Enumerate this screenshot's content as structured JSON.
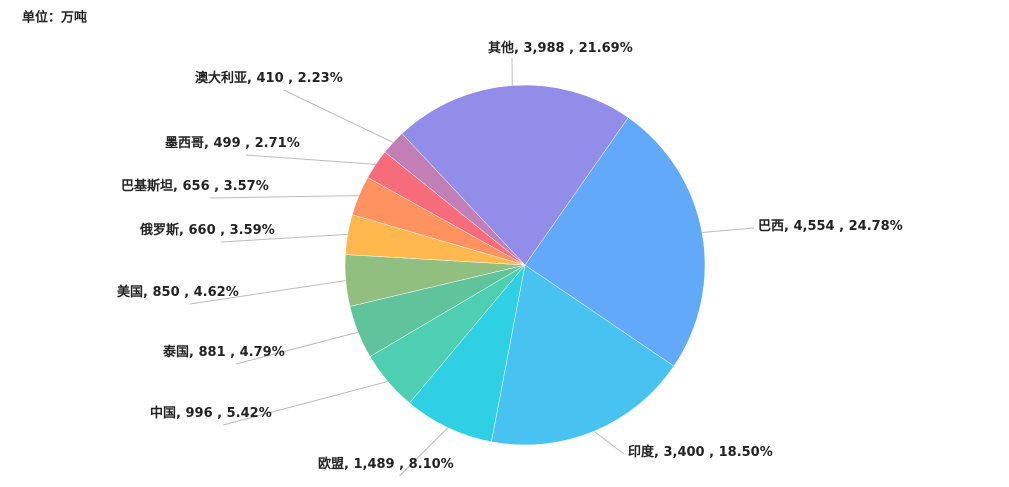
{
  "chart_data": {
    "type": "pie",
    "title": "单位：万吨",
    "categories": [
      "巴西",
      "印度",
      "欧盟",
      "中国",
      "泰国",
      "美国",
      "俄罗斯",
      "巴基斯坦",
      "墨西哥",
      "澳大利亚",
      "其他"
    ],
    "values": [
      4554,
      3400,
      1489,
      996,
      881,
      850,
      660,
      656,
      499,
      410,
      3988
    ],
    "value_labels": [
      "4,554",
      "3,400",
      "1,489",
      "996",
      "881",
      "850",
      "660",
      "656",
      "499",
      "410",
      "3,988"
    ],
    "percents": [
      24.78,
      18.5,
      8.1,
      5.42,
      4.79,
      4.62,
      3.59,
      3.57,
      2.71,
      2.23,
      21.69
    ],
    "percent_labels": [
      "24.78%",
      "18.50%",
      "8.10%",
      "5.42%",
      "4.79%",
      "4.62%",
      "3.59%",
      "3.57%",
      "2.71%",
      "2.23%",
      "21.69%"
    ],
    "label_separators": [
      ", ",
      " , "
    ],
    "colors": [
      "#62aaf9",
      "#48c2f1",
      "#2fd0e4",
      "#4ecfb1",
      "#5fc39b",
      "#91bf80",
      "#ffb84e",
      "#ff925f",
      "#f76c7b",
      "#c27fb6",
      "#918de9"
    ]
  }
}
